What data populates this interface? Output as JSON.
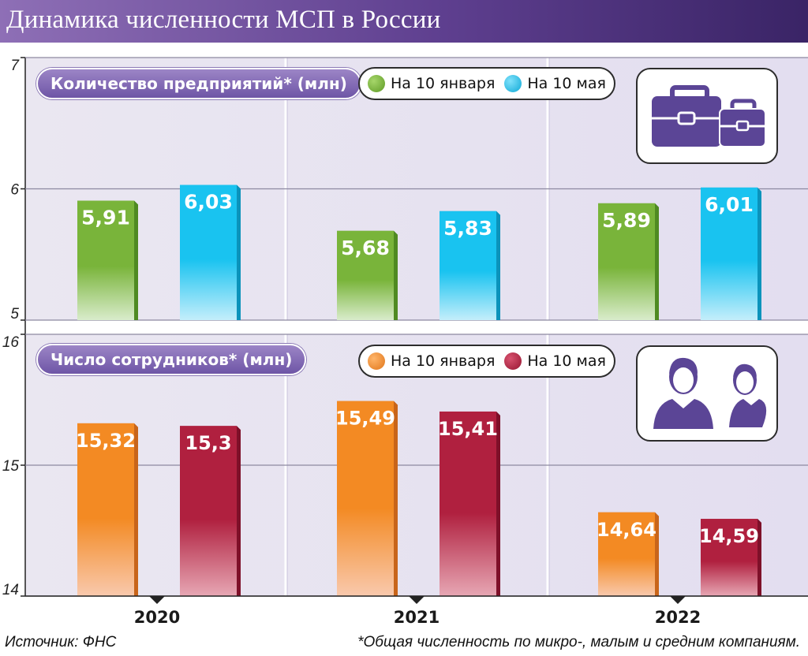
{
  "title": "Динамика численности МСП в России",
  "colors": {
    "header_start": "#8e6fb6",
    "header_end": "#3a2466",
    "panel_left": "#eae7f1",
    "panel_right": "#e3def0",
    "panel_separator": "#c9c2dc",
    "accent_purple": "#5b4596",
    "green": "#79b43a",
    "cyan": "#19c3f0",
    "orange": "#f38a23",
    "crimson": "#b0203f"
  },
  "chart_data": [
    {
      "type": "bar",
      "title": "Количество предприятий* (млн)",
      "categories": [
        "2020",
        "2021",
        "2022"
      ],
      "series": [
        {
          "name": "На 10 января",
          "values": [
            5.91,
            5.68,
            5.89
          ],
          "labels": [
            "5,91",
            "5,68",
            "5,89"
          ],
          "color": "#79b43a",
          "color_light": "#d9eccb",
          "color_dark": "#4f8a22"
        },
        {
          "name": "На 10 мая",
          "values": [
            6.03,
            5.83,
            6.01
          ],
          "labels": [
            "6,03",
            "5,83",
            "6,01"
          ],
          "color": "#19c3f0",
          "color_light": "#c4eefb",
          "color_dark": "#0b93bb"
        }
      ],
      "ylim": [
        5,
        7
      ],
      "yticks": [
        5,
        6,
        7
      ],
      "ytick_labels": [
        "5",
        "6",
        "7"
      ],
      "icon": "briefcase-icon"
    },
    {
      "type": "bar",
      "title": "Число сотрудников* (млн)",
      "categories": [
        "2020",
        "2021",
        "2022"
      ],
      "series": [
        {
          "name": "На 10 января",
          "values": [
            15.32,
            15.49,
            14.64
          ],
          "labels": [
            "15,32",
            "15,49",
            "14,64"
          ],
          "color": "#f38a23",
          "color_light": "#f9c9ad",
          "color_dark": "#c8651a"
        },
        {
          "name": "На 10 мая",
          "values": [
            15.3,
            15.41,
            14.59
          ],
          "labels": [
            "15,3",
            "15,41",
            "14,59"
          ],
          "color": "#b0203f",
          "color_light": "#e7a7b4",
          "color_dark": "#7e1029"
        }
      ],
      "ylim": [
        14,
        16
      ],
      "yticks": [
        14,
        15,
        16
      ],
      "ytick_labels": [
        "14",
        "15",
        "16"
      ],
      "icon": "people-icon"
    }
  ],
  "x_axis": {
    "labels": [
      "2020",
      "2021",
      "2022"
    ]
  },
  "source": "Источник: ФНС",
  "footnote": "*Общая численность по микро-, малым и средним компаниям."
}
